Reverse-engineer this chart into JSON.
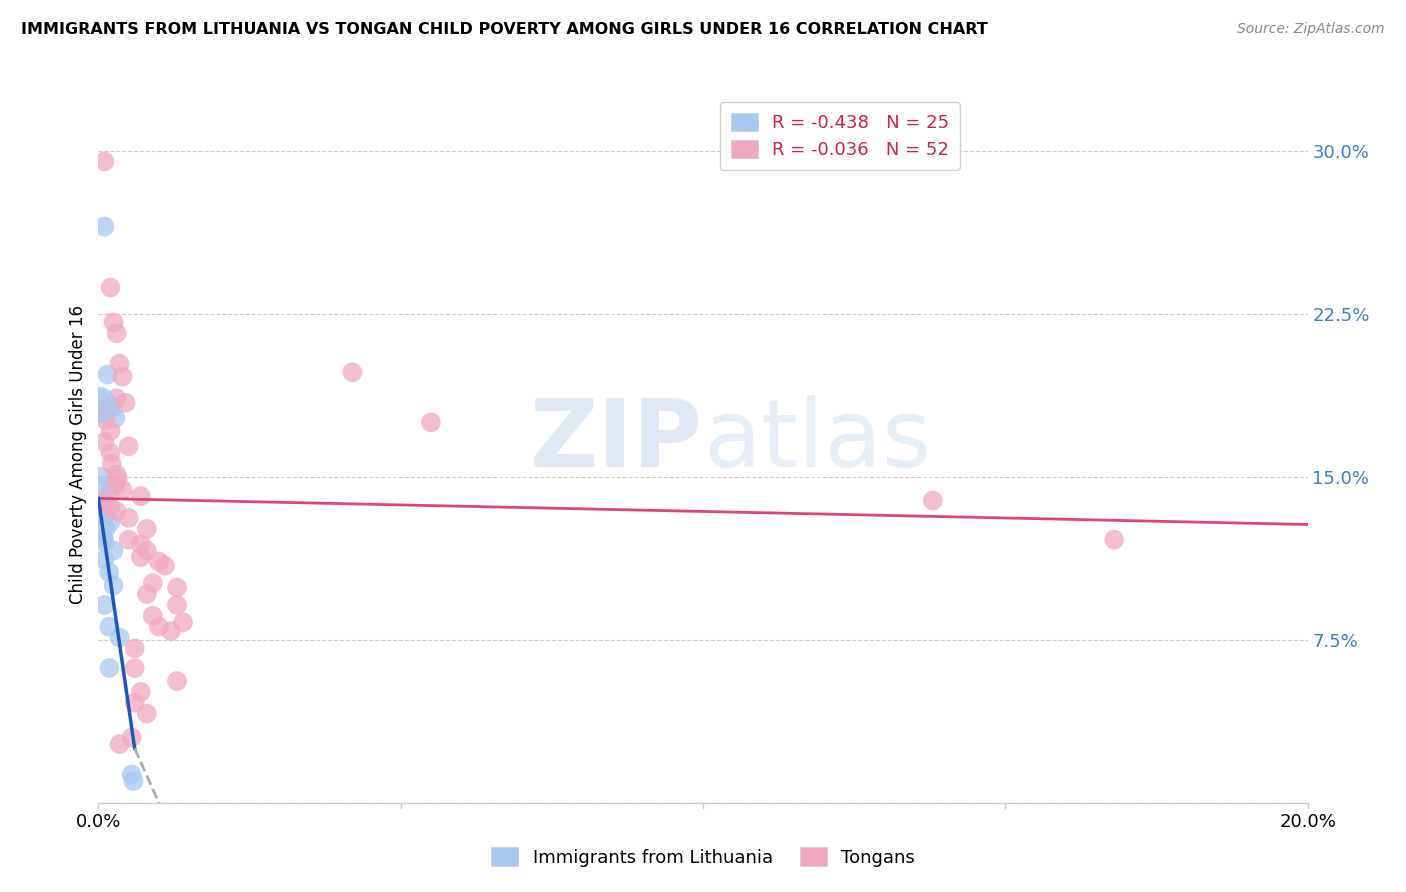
{
  "title": "IMMIGRANTS FROM LITHUANIA VS TONGAN CHILD POVERTY AMONG GIRLS UNDER 16 CORRELATION CHART",
  "source": "Source: ZipAtlas.com",
  "ylabel": "Child Poverty Among Girls Under 16",
  "xlim": [
    0.0,
    0.2
  ],
  "ylim": [
    0.0,
    0.32
  ],
  "yticks": [
    0.0,
    0.075,
    0.15,
    0.225,
    0.3
  ],
  "ytick_labels": [
    "",
    "7.5%",
    "15.0%",
    "22.5%",
    "30.0%"
  ],
  "xticks": [
    0.0,
    0.05,
    0.1,
    0.15,
    0.2
  ],
  "legend_blue_label": "R = -0.438   N = 25",
  "legend_pink_label": "R = -0.036   N = 52",
  "legend_label_blue": "Immigrants from Lithuania",
  "legend_label_pink": "Tongans",
  "blue_color": "#a8c8f0",
  "pink_color": "#f0a8c0",
  "trendline_blue_color": "#2255bb",
  "trendline_pink_color": "#dd4477",
  "trendline_ext_color": "#aaaaaa",
  "watermark_zip": "ZIP",
  "watermark_atlas": "atlas",
  "blue_points": [
    [
      0.001,
      0.265
    ],
    [
      0.0015,
      0.197
    ],
    [
      0.0,
      0.186
    ],
    [
      0.0025,
      0.182
    ],
    [
      0.0028,
      0.177
    ],
    [
      0.0005,
      0.15
    ],
    [
      0.0008,
      0.146
    ],
    [
      0.0018,
      0.143
    ],
    [
      0.001,
      0.139
    ],
    [
      0.0007,
      0.135
    ],
    [
      0.001,
      0.132
    ],
    [
      0.002,
      0.129
    ],
    [
      0.0012,
      0.126
    ],
    [
      0.0008,
      0.122
    ],
    [
      0.001,
      0.12
    ],
    [
      0.0025,
      0.116
    ],
    [
      0.001,
      0.112
    ],
    [
      0.0018,
      0.106
    ],
    [
      0.0025,
      0.1
    ],
    [
      0.001,
      0.091
    ],
    [
      0.0018,
      0.081
    ],
    [
      0.0035,
      0.076
    ],
    [
      0.0018,
      0.062
    ],
    [
      0.0055,
      0.013
    ],
    [
      0.0058,
      0.01
    ]
  ],
  "pink_points": [
    [
      0.001,
      0.295
    ],
    [
      0.002,
      0.237
    ],
    [
      0.0025,
      0.221
    ],
    [
      0.003,
      0.216
    ],
    [
      0.0035,
      0.202
    ],
    [
      0.004,
      0.196
    ],
    [
      0.003,
      0.186
    ],
    [
      0.0045,
      0.184
    ],
    [
      0.0,
      0.181
    ],
    [
      0.001,
      0.179
    ],
    [
      0.0012,
      0.176
    ],
    [
      0.002,
      0.171
    ],
    [
      0.001,
      0.166
    ],
    [
      0.005,
      0.164
    ],
    [
      0.002,
      0.161
    ],
    [
      0.0022,
      0.156
    ],
    [
      0.003,
      0.151
    ],
    [
      0.0032,
      0.149
    ],
    [
      0.0028,
      0.146
    ],
    [
      0.004,
      0.144
    ],
    [
      0.007,
      0.141
    ],
    [
      0.001,
      0.139
    ],
    [
      0.002,
      0.136
    ],
    [
      0.003,
      0.134
    ],
    [
      0.005,
      0.131
    ],
    [
      0.008,
      0.126
    ],
    [
      0.005,
      0.121
    ],
    [
      0.007,
      0.119
    ],
    [
      0.008,
      0.116
    ],
    [
      0.007,
      0.113
    ],
    [
      0.01,
      0.111
    ],
    [
      0.011,
      0.109
    ],
    [
      0.009,
      0.101
    ],
    [
      0.013,
      0.099
    ],
    [
      0.008,
      0.096
    ],
    [
      0.013,
      0.091
    ],
    [
      0.009,
      0.086
    ],
    [
      0.014,
      0.083
    ],
    [
      0.01,
      0.081
    ],
    [
      0.012,
      0.079
    ],
    [
      0.006,
      0.071
    ],
    [
      0.006,
      0.062
    ],
    [
      0.013,
      0.056
    ],
    [
      0.007,
      0.051
    ],
    [
      0.006,
      0.046
    ],
    [
      0.008,
      0.041
    ],
    [
      0.0055,
      0.03
    ],
    [
      0.0035,
      0.027
    ],
    [
      0.042,
      0.198
    ],
    [
      0.055,
      0.175
    ],
    [
      0.138,
      0.139
    ],
    [
      0.168,
      0.121
    ]
  ]
}
